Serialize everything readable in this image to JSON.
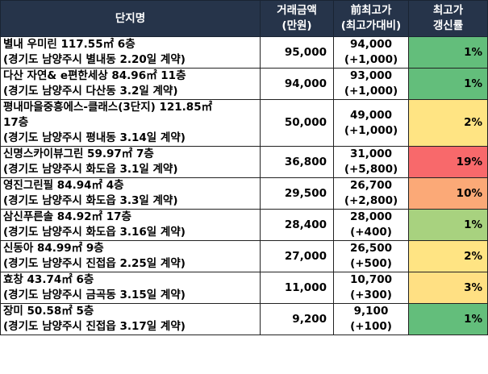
{
  "header": {
    "name": "단지명",
    "price": [
      "거래금액",
      "(만원)"
    ],
    "prev_high": [
      "前최고가",
      "(최고가대비)"
    ],
    "rate": [
      "최고가",
      "갱신률"
    ]
  },
  "rows": [
    {
      "name": [
        "별내 우미린 117.55㎡ 6층",
        "(경기도 남양주시 별내동 2.20일 계약)"
      ],
      "price": "95,000",
      "prev": [
        "94,000",
        "(+1,000)"
      ],
      "rate": "1%",
      "color": "#63be7b"
    },
    {
      "name": [
        "다산 자연& e편한세상 84.96㎡ 11층",
        "(경기도 남양주시 다산동 3.2일 계약)"
      ],
      "price": "94,000",
      "prev": [
        "93,000",
        "(+1,000)"
      ],
      "rate": "1%",
      "color": "#63be7b"
    },
    {
      "name": [
        "평내마을중흥에스-클래스(3단지) 121.85㎡",
        "17층",
        "(경기도 남양주시 평내동 3.14일 계약)"
      ],
      "price": "50,000",
      "prev": [
        "49,000",
        "(+1,000)"
      ],
      "rate": "2%",
      "color": "#ffe483"
    },
    {
      "name": [
        "신명스카이뷰그린 59.97㎡ 7층",
        "(경기도 남양주시 화도읍 3.1일 계약)"
      ],
      "price": "36,800",
      "prev": [
        "31,000",
        "(+5,800)"
      ],
      "rate": "19%",
      "color": "#f8696b"
    },
    {
      "name": [
        "영진그린필 84.94㎡ 4층",
        "(경기도 남양주시 화도읍 3.3일 계약)"
      ],
      "price": "29,500",
      "prev": [
        "26,700",
        "(+2,800)"
      ],
      "rate": "10%",
      "color": "#fba977"
    },
    {
      "name": [
        "삼신푸른솔 84.92㎡ 17층",
        "(경기도 남양주시 화도읍 3.16일 계약)"
      ],
      "price": "28,400",
      "prev": [
        "28,000",
        "(+400)"
      ],
      "rate": "1%",
      "color": "#a8d27f"
    },
    {
      "name": [
        "신동아 84.99㎡ 9층",
        "(경기도 남양주시 진접읍 2.25일 계약)"
      ],
      "price": "27,000",
      "prev": [
        "26,500",
        "(+500)"
      ],
      "rate": "2%",
      "color": "#ffe483"
    },
    {
      "name": [
        "효창 43.74㎡ 6층",
        "(경기도 남양주시 금곡동 3.15일 계약)"
      ],
      "price": "11,000",
      "prev": [
        "10,700",
        "(+300)"
      ],
      "rate": "3%",
      "color": "#ffe083"
    },
    {
      "name": [
        "장미 50.58㎡ 5층",
        "(경기도 남양주시 진접읍 3.17일 계약)"
      ],
      "price": "9,200",
      "prev": [
        "9,100",
        "(+100)"
      ],
      "rate": "1%",
      "color": "#63be7b"
    }
  ]
}
